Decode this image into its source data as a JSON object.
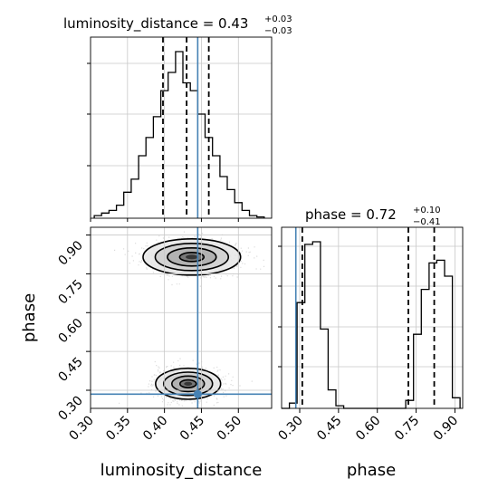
{
  "chart_data": {
    "type": "corner",
    "parameters": [
      "luminosity_distance",
      "phase"
    ],
    "truths": {
      "luminosity_distance": 0.445,
      "phase": 0.285
    },
    "titles": {
      "luminosity_distance": {
        "prefix": "luminosity_distance = 0.43",
        "plus": "+0.03",
        "minus": "−0.03"
      },
      "phase": {
        "prefix": "phase = 0.72",
        "plus": "+0.10",
        "minus": "−0.41"
      }
    },
    "quantiles": {
      "luminosity_distance": [
        0.398,
        0.43,
        0.46
      ],
      "phase": [
        0.31,
        0.72,
        0.82
      ]
    },
    "axis_labels": {
      "x1": "luminosity_distance",
      "x2": "phase",
      "y": "phase"
    },
    "luminosity_distance_ticks": [
      "0.30",
      "0.35",
      "0.40",
      "0.45",
      "0.50"
    ],
    "phase_ticks": [
      "0.30",
      "0.45",
      "0.60",
      "0.75",
      "0.90"
    ],
    "luminosity_distance_range": [
      0.3,
      0.545
    ],
    "phase_range": [
      0.23,
      0.93
    ],
    "hist_luminosity_distance": {
      "edges": [
        0.305,
        0.315,
        0.325,
        0.335,
        0.345,
        0.355,
        0.365,
        0.375,
        0.385,
        0.395,
        0.405,
        0.415,
        0.425,
        0.435,
        0.445,
        0.455,
        0.465,
        0.475,
        0.485,
        0.495,
        0.505,
        0.515,
        0.525,
        0.535
      ],
      "counts": [
        2,
        4,
        6,
        10,
        20,
        30,
        48,
        62,
        78,
        98,
        112,
        128,
        104,
        98,
        80,
        62,
        48,
        32,
        22,
        12,
        6,
        2,
        1
      ]
    },
    "hist_phase": {
      "edges": [
        0.23,
        0.26,
        0.29,
        0.32,
        0.35,
        0.38,
        0.41,
        0.44,
        0.47,
        0.5,
        0.53,
        0.56,
        0.59,
        0.62,
        0.65,
        0.68,
        0.71,
        0.74,
        0.77,
        0.8,
        0.83,
        0.86,
        0.89,
        0.92
      ],
      "counts": [
        0,
        4,
        80,
        124,
        126,
        60,
        14,
        2,
        0,
        0,
        0,
        0,
        0,
        0,
        0,
        0,
        6,
        56,
        90,
        110,
        112,
        100,
        8
      ]
    },
    "posterior_modes": [
      {
        "x": 0.432,
        "y": 0.325,
        "sx": 0.022,
        "sy": 0.03
      },
      {
        "x": 0.437,
        "y": 0.815,
        "sx": 0.033,
        "sy": 0.035
      }
    ],
    "grid": true
  }
}
